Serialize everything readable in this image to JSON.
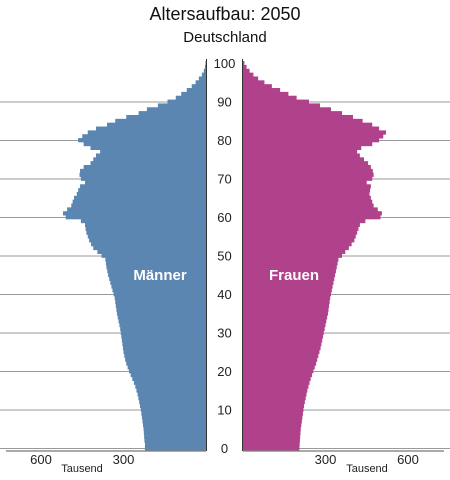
{
  "chart_data": {
    "type": "bar",
    "orientation": "horizontal",
    "title": "Altersaufbau: 2050",
    "subtitle": "Deutschland",
    "y_axis_ticks": [
      "0",
      "10",
      "20",
      "30",
      "40",
      "50",
      "60",
      "70",
      "80",
      "90",
      "100"
    ],
    "x_axis_ticks_left": [
      "600",
      "300"
    ],
    "x_axis_ticks_right": [
      "300",
      "600"
    ],
    "x_unit_left": "Tausend",
    "x_unit_right": "Tausend",
    "xlim": [
      0,
      700
    ],
    "ylim": [
      0,
      100
    ],
    "grid": "horizontal-every-10-years",
    "ages": [
      0,
      1,
      2,
      3,
      4,
      5,
      6,
      7,
      8,
      9,
      10,
      11,
      12,
      13,
      14,
      15,
      16,
      17,
      18,
      19,
      20,
      21,
      22,
      23,
      24,
      25,
      26,
      27,
      28,
      29,
      30,
      31,
      32,
      33,
      34,
      35,
      36,
      37,
      38,
      39,
      40,
      41,
      42,
      43,
      44,
      45,
      46,
      47,
      48,
      49,
      50,
      51,
      52,
      53,
      54,
      55,
      56,
      57,
      58,
      59,
      60,
      61,
      62,
      63,
      64,
      65,
      66,
      67,
      68,
      69,
      70,
      71,
      72,
      73,
      74,
      75,
      76,
      77,
      78,
      79,
      80,
      81,
      82,
      83,
      84,
      85,
      86,
      87,
      88,
      89,
      90,
      91,
      92,
      93,
      94,
      95,
      96,
      97,
      98,
      99,
      100
    ],
    "series": [
      {
        "name": "Männer",
        "color": "#5b86b1",
        "values": [
          222,
          222,
          224,
          225,
          226,
          227,
          229,
          231,
          233,
          235,
          237,
          240,
          243,
          246,
          249,
          253,
          257,
          262,
          268,
          274,
          280,
          285,
          290,
          294,
          297,
          300,
          302,
          304,
          306,
          308,
          310,
          312,
          315,
          318,
          321,
          324,
          326,
          328,
          330,
          332,
          336,
          340,
          344,
          348,
          352,
          356,
          359,
          362,
          364,
          366,
          380,
          395,
          410,
          418,
          425,
          430,
          435,
          438,
          440,
          455,
          510,
          520,
          505,
          490,
          485,
          480,
          470,
          465,
          458,
          440,
          455,
          460,
          458,
          445,
          420,
          410,
          400,
          385,
          420,
          445,
          465,
          450,
          430,
          400,
          360,
          330,
          290,
          245,
          215,
          175,
          140,
          110,
          90,
          70,
          52,
          38,
          26,
          15,
          8,
          4,
          2
        ]
      },
      {
        "name": "Frauen",
        "color": "#b0418b",
        "values": [
          205,
          206,
          207,
          208,
          209,
          210,
          212,
          214,
          216,
          218,
          220,
          222,
          225,
          228,
          231,
          234,
          238,
          242,
          246,
          251,
          256,
          261,
          266,
          270,
          274,
          278,
          282,
          285,
          288,
          291,
          294,
          297,
          300,
          303,
          306,
          309,
          311,
          313,
          315,
          317,
          320,
          323,
          326,
          329,
          332,
          335,
          338,
          341,
          344,
          347,
          360,
          372,
          385,
          395,
          405,
          410,
          415,
          420,
          425,
          445,
          500,
          505,
          490,
          475,
          470,
          465,
          460,
          462,
          465,
          450,
          470,
          475,
          472,
          465,
          455,
          440,
          425,
          415,
          430,
          470,
          495,
          510,
          520,
          495,
          470,
          435,
          400,
          360,
          320,
          280,
          240,
          195,
          165,
          135,
          105,
          78,
          55,
          38,
          24,
          13,
          5
        ]
      }
    ]
  }
}
